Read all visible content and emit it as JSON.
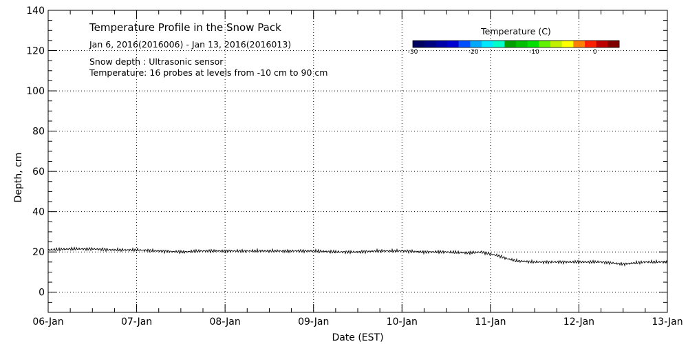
{
  "chart_data": {
    "type": "line",
    "title": "Temperature Profile in the Snow Pack",
    "date_range": "Jan  6, 2016(2016006) - Jan 13, 2016(2016013)",
    "info_lines": [
      "Snow depth : Ultrasonic sensor",
      "Temperature: 16 probes at levels from -10 cm to 90 cm"
    ],
    "xlabel": "Date (EST)",
    "ylabel": "Depth, cm",
    "xlim": [
      0,
      7
    ],
    "ylim": [
      -10,
      140
    ],
    "x_ticks": [
      {
        "value": 0,
        "label": "06-Jan"
      },
      {
        "value": 1,
        "label": "07-Jan"
      },
      {
        "value": 2,
        "label": "08-Jan"
      },
      {
        "value": 3,
        "label": "09-Jan"
      },
      {
        "value": 4,
        "label": "10-Jan"
      },
      {
        "value": 5,
        "label": "11-Jan"
      },
      {
        "value": 6,
        "label": "12-Jan"
      },
      {
        "value": 7,
        "label": "13-Jan"
      }
    ],
    "y_ticks": [
      0,
      20,
      40,
      60,
      80,
      100,
      120,
      140
    ],
    "y_tick_labels": [
      "0",
      "20",
      "40",
      "60",
      "80",
      "100",
      "120",
      "140"
    ],
    "grid": true,
    "series": [
      {
        "color": "#000000",
        "x": [
          0,
          0.25,
          0.5,
          0.75,
          1.0,
          1.25,
          1.5,
          1.75,
          2.0,
          2.25,
          2.5,
          2.75,
          3.0,
          3.25,
          3.5,
          3.75,
          4.0,
          4.25,
          4.5,
          4.75,
          4.9,
          5.0,
          5.1,
          5.2,
          5.3,
          5.5,
          5.75,
          6.0,
          6.25,
          6.5,
          6.75,
          7.0
        ],
        "y": [
          21,
          21.5,
          21.5,
          21,
          21,
          20.5,
          20,
          20.5,
          20.5,
          20.5,
          20.5,
          20.5,
          20.5,
          20,
          20,
          20.5,
          20.5,
          20,
          20,
          19.5,
          20,
          19,
          18,
          16.5,
          15.5,
          15,
          15,
          15,
          15,
          14,
          15,
          15
        ]
      }
    ],
    "colorbar": {
      "title": "Temperature (C)",
      "tick_labels": [
        "-30",
        "-20",
        "-10",
        "0"
      ],
      "tick_values": [
        -30,
        -20,
        -10,
        0
      ],
      "range": [
        -30,
        4
      ],
      "colors": [
        "#000060",
        "#000080",
        "#0000a8",
        "#0000d0",
        "#0050ff",
        "#00a8ff",
        "#00e8ff",
        "#00ffc8",
        "#00a000",
        "#00c000",
        "#00e000",
        "#60f000",
        "#c0f000",
        "#ffff00",
        "#ff8000",
        "#ff2000",
        "#c00000",
        "#800000"
      ]
    }
  }
}
